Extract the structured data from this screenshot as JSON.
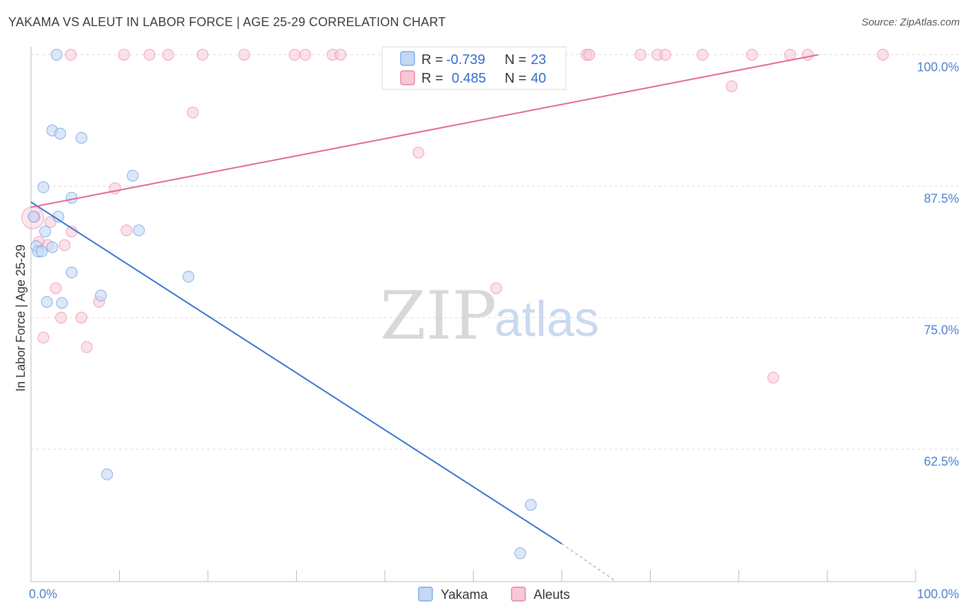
{
  "header": {
    "title": "YAKAMA VS ALEUT IN LABOR FORCE | AGE 25-29 CORRELATION CHART",
    "source": "Source: ZipAtlas.com"
  },
  "watermark": {
    "zip": "ZIP",
    "atlas": "atlas"
  },
  "colors": {
    "yakama": "#6a9ee6",
    "yakama_fill": "#c4d8f4",
    "aleut": "#e96f97",
    "aleut_fill": "#f7c9d6",
    "axis_text": "#4a7fd0",
    "grid": "#dddddd"
  },
  "chart_data": {
    "type": "scatter",
    "title": "YAKAMA VS ALEUT IN LABOR FORCE | AGE 25-29 CORRELATION CHART",
    "xlabel": "",
    "ylabel": "In Labor Force | Age 25-29",
    "xlim": [
      0,
      100
    ],
    "ylim": [
      50,
      101
    ],
    "x_tick_labels": [
      "0.0%",
      "100.0%"
    ],
    "y_ticks": [
      {
        "value": 62.5,
        "label": "62.5%"
      },
      {
        "value": 75.0,
        "label": "75.0%"
      },
      {
        "value": 87.5,
        "label": "87.5%"
      },
      {
        "value": 100.0,
        "label": "100.0%"
      }
    ],
    "legend": {
      "r_label": "R =",
      "n_label": "N =",
      "entries": [
        {
          "name": "Yakama",
          "r": "-0.739",
          "n": "23"
        },
        {
          "name": "Aleuts",
          "r": "0.485",
          "n": "40"
        }
      ]
    },
    "series": [
      {
        "name": "Yakama",
        "points": [
          {
            "x": 2.9,
            "y": 100.0
          },
          {
            "x": 2.4,
            "y": 92.8
          },
          {
            "x": 3.3,
            "y": 92.5
          },
          {
            "x": 5.7,
            "y": 92.1
          },
          {
            "x": 11.5,
            "y": 88.5
          },
          {
            "x": 1.4,
            "y": 87.4
          },
          {
            "x": 4.6,
            "y": 86.4
          },
          {
            "x": 0.3,
            "y": 84.6
          },
          {
            "x": 3.1,
            "y": 84.6
          },
          {
            "x": 1.6,
            "y": 83.2
          },
          {
            "x": 12.2,
            "y": 83.3
          },
          {
            "x": 0.6,
            "y": 81.8
          },
          {
            "x": 2.4,
            "y": 81.7
          },
          {
            "x": 0.8,
            "y": 81.3
          },
          {
            "x": 1.2,
            "y": 81.3
          },
          {
            "x": 4.6,
            "y": 79.3
          },
          {
            "x": 17.8,
            "y": 78.9
          },
          {
            "x": 7.9,
            "y": 77.1
          },
          {
            "x": 1.8,
            "y": 76.5
          },
          {
            "x": 3.5,
            "y": 76.4
          },
          {
            "x": 8.6,
            "y": 60.1
          },
          {
            "x": 56.5,
            "y": 57.2
          },
          {
            "x": 55.3,
            "y": 52.6
          }
        ]
      },
      {
        "name": "Aleuts",
        "points": [
          {
            "x": 4.5,
            "y": 100.0
          },
          {
            "x": 10.5,
            "y": 100.0
          },
          {
            "x": 13.4,
            "y": 100.0
          },
          {
            "x": 15.5,
            "y": 100.0
          },
          {
            "x": 19.4,
            "y": 100.0
          },
          {
            "x": 24.1,
            "y": 100.0
          },
          {
            "x": 29.8,
            "y": 100.0
          },
          {
            "x": 31.0,
            "y": 100.0
          },
          {
            "x": 34.1,
            "y": 100.0
          },
          {
            "x": 35.0,
            "y": 100.0
          },
          {
            "x": 62.8,
            "y": 100.0
          },
          {
            "x": 63.1,
            "y": 100.0
          },
          {
            "x": 68.9,
            "y": 100.0
          },
          {
            "x": 70.8,
            "y": 100.0
          },
          {
            "x": 71.7,
            "y": 100.0
          },
          {
            "x": 75.9,
            "y": 100.0
          },
          {
            "x": 81.5,
            "y": 100.0
          },
          {
            "x": 85.8,
            "y": 100.0
          },
          {
            "x": 87.8,
            "y": 100.0
          },
          {
            "x": 96.3,
            "y": 100.0
          },
          {
            "x": 79.2,
            "y": 97.0
          },
          {
            "x": 18.3,
            "y": 94.5
          },
          {
            "x": 43.8,
            "y": 90.7
          },
          {
            "x": 9.5,
            "y": 87.3
          },
          {
            "x": 0.4,
            "y": 84.6
          },
          {
            "x": 2.2,
            "y": 84.1
          },
          {
            "x": 10.8,
            "y": 83.3
          },
          {
            "x": 4.6,
            "y": 83.2
          },
          {
            "x": 0.9,
            "y": 82.2
          },
          {
            "x": 1.9,
            "y": 81.9
          },
          {
            "x": 3.8,
            "y": 81.9
          },
          {
            "x": 2.8,
            "y": 77.8
          },
          {
            "x": 52.6,
            "y": 77.8
          },
          {
            "x": 7.7,
            "y": 76.5
          },
          {
            "x": 3.4,
            "y": 75.0
          },
          {
            "x": 5.7,
            "y": 75.0
          },
          {
            "x": 1.4,
            "y": 73.1
          },
          {
            "x": 6.3,
            "y": 72.2
          },
          {
            "x": 83.9,
            "y": 69.3
          },
          {
            "x": 0.2,
            "y": 84.5
          }
        ]
      }
    ],
    "trendlines": [
      {
        "series": "Yakama",
        "x_start": 0,
        "y_start": 86.0,
        "x_end": 60.0,
        "y_end": 53.5,
        "dashed_to_x": 66.0,
        "dashed_to_y": 50.0
      },
      {
        "series": "Aleuts",
        "x_start": 0,
        "y_start": 85.5,
        "x_end": 89.0,
        "y_end": 100.0
      }
    ]
  }
}
